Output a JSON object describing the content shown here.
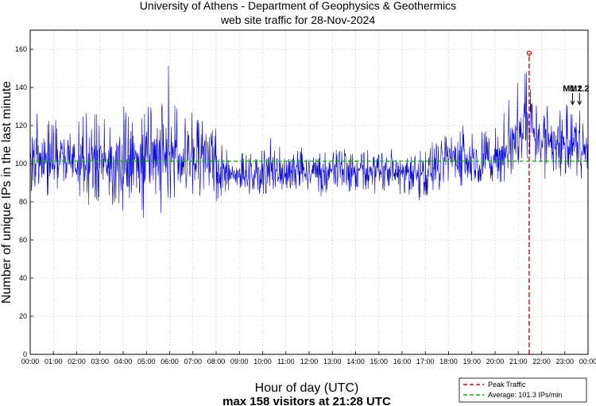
{
  "chart_data": {
    "type": "line",
    "title": "University of Athens - Department of Geophysics & Geothermics",
    "subtitle": "web site traffic for 28-Nov-2024",
    "xlabel": "Hour of day (UTC)",
    "ylabel": "Number of unique IPs in the last minute",
    "footer": "max 158 visitors at 21:28 UTC",
    "x_tick_labels": [
      "00:00",
      "01:00",
      "02:00",
      "03:00",
      "04:00",
      "05:00",
      "06:00",
      "07:00",
      "08:00",
      "09:00",
      "10:00",
      "11:00",
      "12:00",
      "13:00",
      "14:00",
      "15:00",
      "16:00",
      "17:00",
      "18:00",
      "19:00",
      "20:00",
      "21:00",
      "22:00",
      "23:00",
      "00:00"
    ],
    "xlim": [
      0,
      24
    ],
    "y_ticks": [
      0,
      20,
      40,
      60,
      80,
      100,
      120,
      140,
      160
    ],
    "ylim": [
      0,
      170
    ],
    "grid": true,
    "legend_position": "bottom-right",
    "series": [
      {
        "name": "",
        "color": "#0000cc",
        "x_hours": [
          0.0,
          0.25,
          0.5,
          0.75,
          1.0,
          1.25,
          1.5,
          1.75,
          2.0,
          2.25,
          2.5,
          2.75,
          3.0,
          3.25,
          3.5,
          3.75,
          4.0,
          4.25,
          4.5,
          4.75,
          5.0,
          5.25,
          5.5,
          5.75,
          6.0,
          6.25,
          6.5,
          6.75,
          7.0,
          7.25,
          7.5,
          7.75,
          8.0,
          8.25,
          8.5,
          8.75,
          9.0,
          9.25,
          9.5,
          9.75,
          10.0,
          10.25,
          10.5,
          10.75,
          11.0,
          11.25,
          11.5,
          11.75,
          12.0,
          12.25,
          12.5,
          12.75,
          13.0,
          13.25,
          13.5,
          13.75,
          14.0,
          14.25,
          14.5,
          14.75,
          15.0,
          15.25,
          15.5,
          15.75,
          16.0,
          16.25,
          16.5,
          16.75,
          17.0,
          17.25,
          17.5,
          17.75,
          18.0,
          18.25,
          18.5,
          18.75,
          19.0,
          19.25,
          19.5,
          19.75,
          20.0,
          20.25,
          20.5,
          20.75,
          21.0,
          21.25,
          21.5,
          21.75,
          22.0,
          22.25,
          22.5,
          22.75,
          23.0,
          23.25,
          23.5,
          23.75,
          24.0
        ],
        "mean": [
          104,
          105,
          103,
          102,
          101,
          103,
          104,
          103,
          102,
          102,
          103,
          104,
          102,
          101,
          100,
          102,
          103,
          101,
          101,
          102,
          104,
          105,
          106,
          106,
          108,
          104,
          103,
          103,
          104,
          103,
          103,
          102,
          100,
          96,
          95,
          94,
          94,
          94,
          95,
          94,
          95,
          96,
          96,
          96,
          95,
          95,
          96,
          95,
          95,
          95,
          95,
          94,
          95,
          96,
          95,
          95,
          95,
          96,
          96,
          95,
          95,
          96,
          96,
          95,
          96,
          97,
          97,
          97,
          97,
          98,
          98,
          99,
          103,
          104,
          102,
          103,
          101,
          101,
          101,
          100,
          102,
          105,
          107,
          110,
          118,
          120,
          121,
          118,
          114,
          114,
          112,
          111,
          111,
          111,
          110,
          108,
          108
        ],
        "low": [
          85,
          84,
          82,
          80,
          80,
          82,
          85,
          83,
          82,
          80,
          78,
          80,
          80,
          79,
          76,
          78,
          74,
          76,
          72,
          70,
          68,
          72,
          70,
          73,
          82,
          80,
          82,
          84,
          82,
          80,
          80,
          82,
          78,
          84,
          84,
          84,
          85,
          84,
          84,
          84,
          84,
          85,
          86,
          85,
          85,
          84,
          85,
          84,
          84,
          84,
          83,
          83,
          84,
          84,
          84,
          84,
          84,
          85,
          84,
          84,
          84,
          84,
          84,
          84,
          84,
          84,
          82,
          80,
          82,
          84,
          84,
          86,
          88,
          90,
          88,
          90,
          90,
          90,
          90,
          90,
          90,
          90,
          90,
          94,
          100,
          102,
          100,
          98,
          92,
          90,
          94,
          94,
          92,
          92,
          94,
          90,
          88
        ],
        "high": [
          130,
          134,
          126,
          124,
          122,
          128,
          130,
          128,
          124,
          126,
          128,
          130,
          124,
          124,
          120,
          128,
          132,
          124,
          122,
          124,
          130,
          130,
          132,
          140,
          156,
          130,
          126,
          128,
          128,
          124,
          124,
          124,
          122,
          112,
          106,
          105,
          106,
          106,
          108,
          106,
          114,
          116,
          110,
          110,
          108,
          106,
          110,
          108,
          104,
          106,
          106,
          106,
          106,
          108,
          108,
          106,
          106,
          108,
          108,
          106,
          106,
          110,
          108,
          106,
          110,
          110,
          110,
          110,
          110,
          112,
          112,
          114,
          122,
          124,
          120,
          122,
          118,
          118,
          118,
          116,
          120,
          124,
          130,
          140,
          145,
          150,
          154,
          142,
          134,
          136,
          134,
          132,
          130,
          134,
          132,
          130,
          128
        ]
      }
    ],
    "reference_lines": [
      {
        "name": "Peak Traffic",
        "legend": "Peak Traffic",
        "color": "#dd0000",
        "x_hours": 21.4667,
        "peak_value": 158
      },
      {
        "name": "Average",
        "legend": "Average: 101.3 IPs/min",
        "color": "#00aa00",
        "y": 101.3
      }
    ],
    "annotations": [
      {
        "label": "M1.2",
        "x_hours": 23.333
      },
      {
        "label": "M1.2",
        "x_hours": 23.633
      }
    ]
  }
}
